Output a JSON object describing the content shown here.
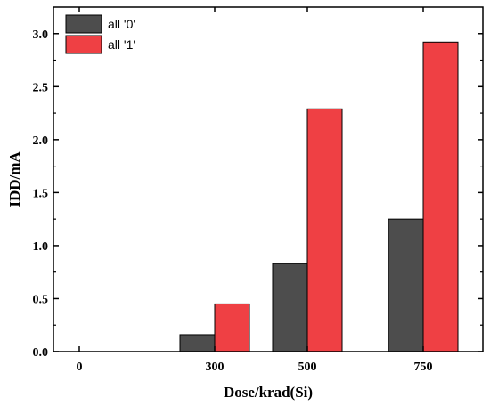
{
  "chart_data": {
    "type": "bar",
    "title": "",
    "xlabel": "Dose/krad(Si)",
    "ylabel": "IDD/mA",
    "categories": [
      "0",
      "300",
      "500",
      "750"
    ],
    "series": [
      {
        "name": "all '0'",
        "values": [
          0,
          0.16,
          0.83,
          1.25
        ],
        "color": "#4d4d4d"
      },
      {
        "name": "all '1'",
        "values": [
          0,
          0.45,
          2.29,
          2.92
        ],
        "color": "#ef4044"
      }
    ],
    "ylim": [
      0,
      3.25
    ],
    "yticks": [
      "0.0",
      "0.5",
      "1.0",
      "1.5",
      "2.0",
      "2.5",
      "3.0"
    ],
    "grid": false,
    "legend_position": "top-left"
  }
}
